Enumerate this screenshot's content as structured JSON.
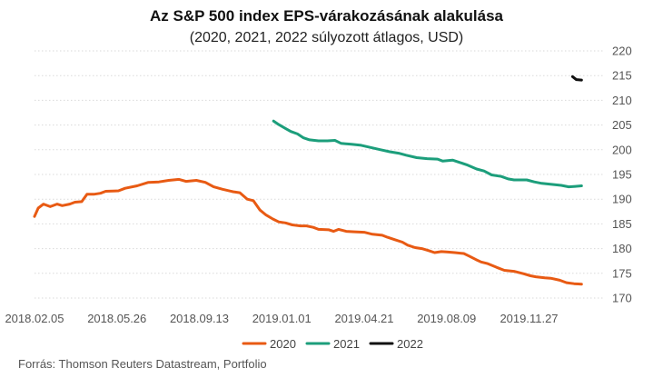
{
  "title": "Az S&P 500 index EPS-várakozásának alakulása",
  "subtitle": "(2020, 2021, 2022 súlyozott átlagos, USD)",
  "source": "Forrás: Thomson Reuters Datastream, Portfolio",
  "chart_data": {
    "type": "line",
    "ylim": [
      170,
      220
    ],
    "yticks": [
      170,
      175,
      180,
      185,
      190,
      195,
      200,
      205,
      210,
      215,
      220
    ],
    "xlim": [
      "2018-02-05",
      "2020-03-06"
    ],
    "xticks": [
      "2018.02.05",
      "2018.05.26",
      "2018.09.13",
      "2019.01.01",
      "2019.04.21",
      "2019.08.09",
      "2019.11.27"
    ],
    "grid": "horizontal",
    "legend_position": "bottom",
    "series": [
      {
        "name": "2020",
        "color": "#e85a13",
        "points": [
          [
            "2018-02-05",
            186.5
          ],
          [
            "2018-02-10",
            188.2
          ],
          [
            "2018-02-17",
            189.0
          ],
          [
            "2018-02-26",
            188.5
          ],
          [
            "2018-03-07",
            189.0
          ],
          [
            "2018-03-14",
            188.7
          ],
          [
            "2018-03-24",
            189.0
          ],
          [
            "2018-03-31",
            189.4
          ],
          [
            "2018-04-09",
            189.5
          ],
          [
            "2018-04-16",
            191.0
          ],
          [
            "2018-04-25",
            191.0
          ],
          [
            "2018-05-04",
            191.2
          ],
          [
            "2018-05-11",
            191.6
          ],
          [
            "2018-05-28",
            191.7
          ],
          [
            "2018-06-06",
            192.2
          ],
          [
            "2018-06-22",
            192.7
          ],
          [
            "2018-07-07",
            193.4
          ],
          [
            "2018-07-21",
            193.5
          ],
          [
            "2018-08-03",
            193.8
          ],
          [
            "2018-08-17",
            194.0
          ],
          [
            "2018-08-26",
            193.6
          ],
          [
            "2018-09-09",
            193.8
          ],
          [
            "2018-09-21",
            193.4
          ],
          [
            "2018-10-02",
            192.5
          ],
          [
            "2018-10-14",
            192.0
          ],
          [
            "2018-10-28",
            191.5
          ],
          [
            "2018-11-06",
            191.3
          ],
          [
            "2018-11-16",
            190.0
          ],
          [
            "2018-11-24",
            189.7
          ],
          [
            "2018-12-03",
            187.8
          ],
          [
            "2018-12-11",
            186.8
          ],
          [
            "2018-12-20",
            186.0
          ],
          [
            "2018-12-28",
            185.4
          ],
          [
            "2019-01-06",
            185.2
          ],
          [
            "2019-01-15",
            184.8
          ],
          [
            "2019-01-26",
            184.6
          ],
          [
            "2019-02-03",
            184.6
          ],
          [
            "2019-02-12",
            184.3
          ],
          [
            "2019-02-19",
            183.9
          ],
          [
            "2019-03-05",
            183.8
          ],
          [
            "2019-03-11",
            183.5
          ],
          [
            "2019-03-18",
            183.9
          ],
          [
            "2019-03-28",
            183.5
          ],
          [
            "2019-04-08",
            183.4
          ],
          [
            "2019-04-21",
            183.3
          ],
          [
            "2019-05-02",
            182.9
          ],
          [
            "2019-05-15",
            182.7
          ],
          [
            "2019-05-22",
            182.3
          ],
          [
            "2019-06-01",
            181.8
          ],
          [
            "2019-06-11",
            181.3
          ],
          [
            "2019-06-18",
            180.7
          ],
          [
            "2019-06-28",
            180.2
          ],
          [
            "2019-07-07",
            180.0
          ],
          [
            "2019-07-16",
            179.6
          ],
          [
            "2019-07-24",
            179.2
          ],
          [
            "2019-08-02",
            179.4
          ],
          [
            "2019-08-11",
            179.3
          ],
          [
            "2019-08-20",
            179.2
          ],
          [
            "2019-09-01",
            179.0
          ],
          [
            "2019-09-08",
            178.5
          ],
          [
            "2019-09-17",
            177.8
          ],
          [
            "2019-09-24",
            177.3
          ],
          [
            "2019-10-02",
            177.0
          ],
          [
            "2019-10-15",
            176.2
          ],
          [
            "2019-10-25",
            175.6
          ],
          [
            "2019-11-07",
            175.4
          ],
          [
            "2019-11-20",
            174.9
          ],
          [
            "2019-11-29",
            174.5
          ],
          [
            "2019-12-06",
            174.3
          ],
          [
            "2019-12-18",
            174.1
          ],
          [
            "2019-12-26",
            174.0
          ],
          [
            "2020-01-07",
            173.6
          ],
          [
            "2020-01-16",
            173.1
          ],
          [
            "2020-01-26",
            172.9
          ],
          [
            "2020-02-05",
            172.8
          ]
        ]
      },
      {
        "name": "2021",
        "color": "#1c9e7b",
        "points": [
          [
            "2018-12-21",
            205.8
          ],
          [
            "2018-12-28",
            205.1
          ],
          [
            "2019-01-06",
            204.3
          ],
          [
            "2019-01-13",
            203.7
          ],
          [
            "2019-01-22",
            203.2
          ],
          [
            "2019-01-30",
            202.4
          ],
          [
            "2019-02-07",
            202.0
          ],
          [
            "2019-02-19",
            201.8
          ],
          [
            "2019-03-03",
            201.8
          ],
          [
            "2019-03-13",
            201.9
          ],
          [
            "2019-03-21",
            201.3
          ],
          [
            "2019-04-04",
            201.1
          ],
          [
            "2019-04-17",
            200.9
          ],
          [
            "2019-05-01",
            200.4
          ],
          [
            "2019-05-13",
            200.0
          ],
          [
            "2019-05-25",
            199.6
          ],
          [
            "2019-06-06",
            199.3
          ],
          [
            "2019-06-16",
            198.9
          ],
          [
            "2019-06-30",
            198.4
          ],
          [
            "2019-07-14",
            198.2
          ],
          [
            "2019-07-28",
            198.1
          ],
          [
            "2019-08-04",
            197.7
          ],
          [
            "2019-08-17",
            197.9
          ],
          [
            "2019-08-27",
            197.4
          ],
          [
            "2019-09-06",
            196.9
          ],
          [
            "2019-09-18",
            196.1
          ],
          [
            "2019-09-28",
            195.7
          ],
          [
            "2019-10-08",
            194.9
          ],
          [
            "2019-10-21",
            194.6
          ],
          [
            "2019-10-30",
            194.1
          ],
          [
            "2019-11-07",
            193.9
          ],
          [
            "2019-11-24",
            193.9
          ],
          [
            "2019-12-04",
            193.5
          ],
          [
            "2019-12-14",
            193.2
          ],
          [
            "2019-12-27",
            193.0
          ],
          [
            "2020-01-09",
            192.8
          ],
          [
            "2020-01-19",
            192.5
          ],
          [
            "2020-01-28",
            192.6
          ],
          [
            "2020-02-05",
            192.7
          ]
        ]
      },
      {
        "name": "2022",
        "color": "#111111",
        "points": [
          [
            "2020-01-24",
            214.8
          ],
          [
            "2020-01-29",
            214.2
          ],
          [
            "2020-02-05",
            214.1
          ]
        ]
      }
    ]
  }
}
